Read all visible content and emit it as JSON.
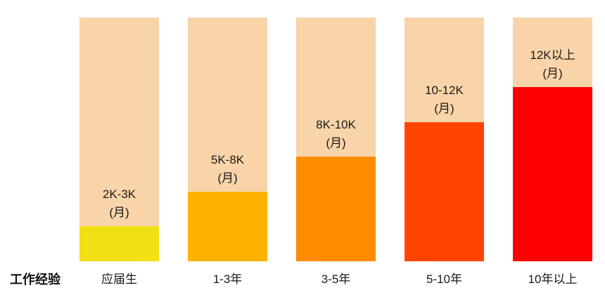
{
  "chart_data": {
    "type": "bar",
    "title": "",
    "xlabel": "工作经验",
    "ylabel": "",
    "unit_suffix": "(月)",
    "categories": [
      "应届生",
      "1-3年",
      "3-5年",
      "5-10年",
      "10年以上"
    ],
    "labels": [
      "2K-3K",
      "5K-8K",
      "8K-10K",
      "10-12K",
      "12K以上"
    ],
    "values": [
      1,
      2,
      3,
      4,
      5
    ],
    "ylim": [
      0,
      7
    ],
    "colors": [
      "#f0e014",
      "#ffb300",
      "#ff8c00",
      "#ff4500",
      "#ff0000"
    ],
    "background_color": "#f9d4a8"
  }
}
